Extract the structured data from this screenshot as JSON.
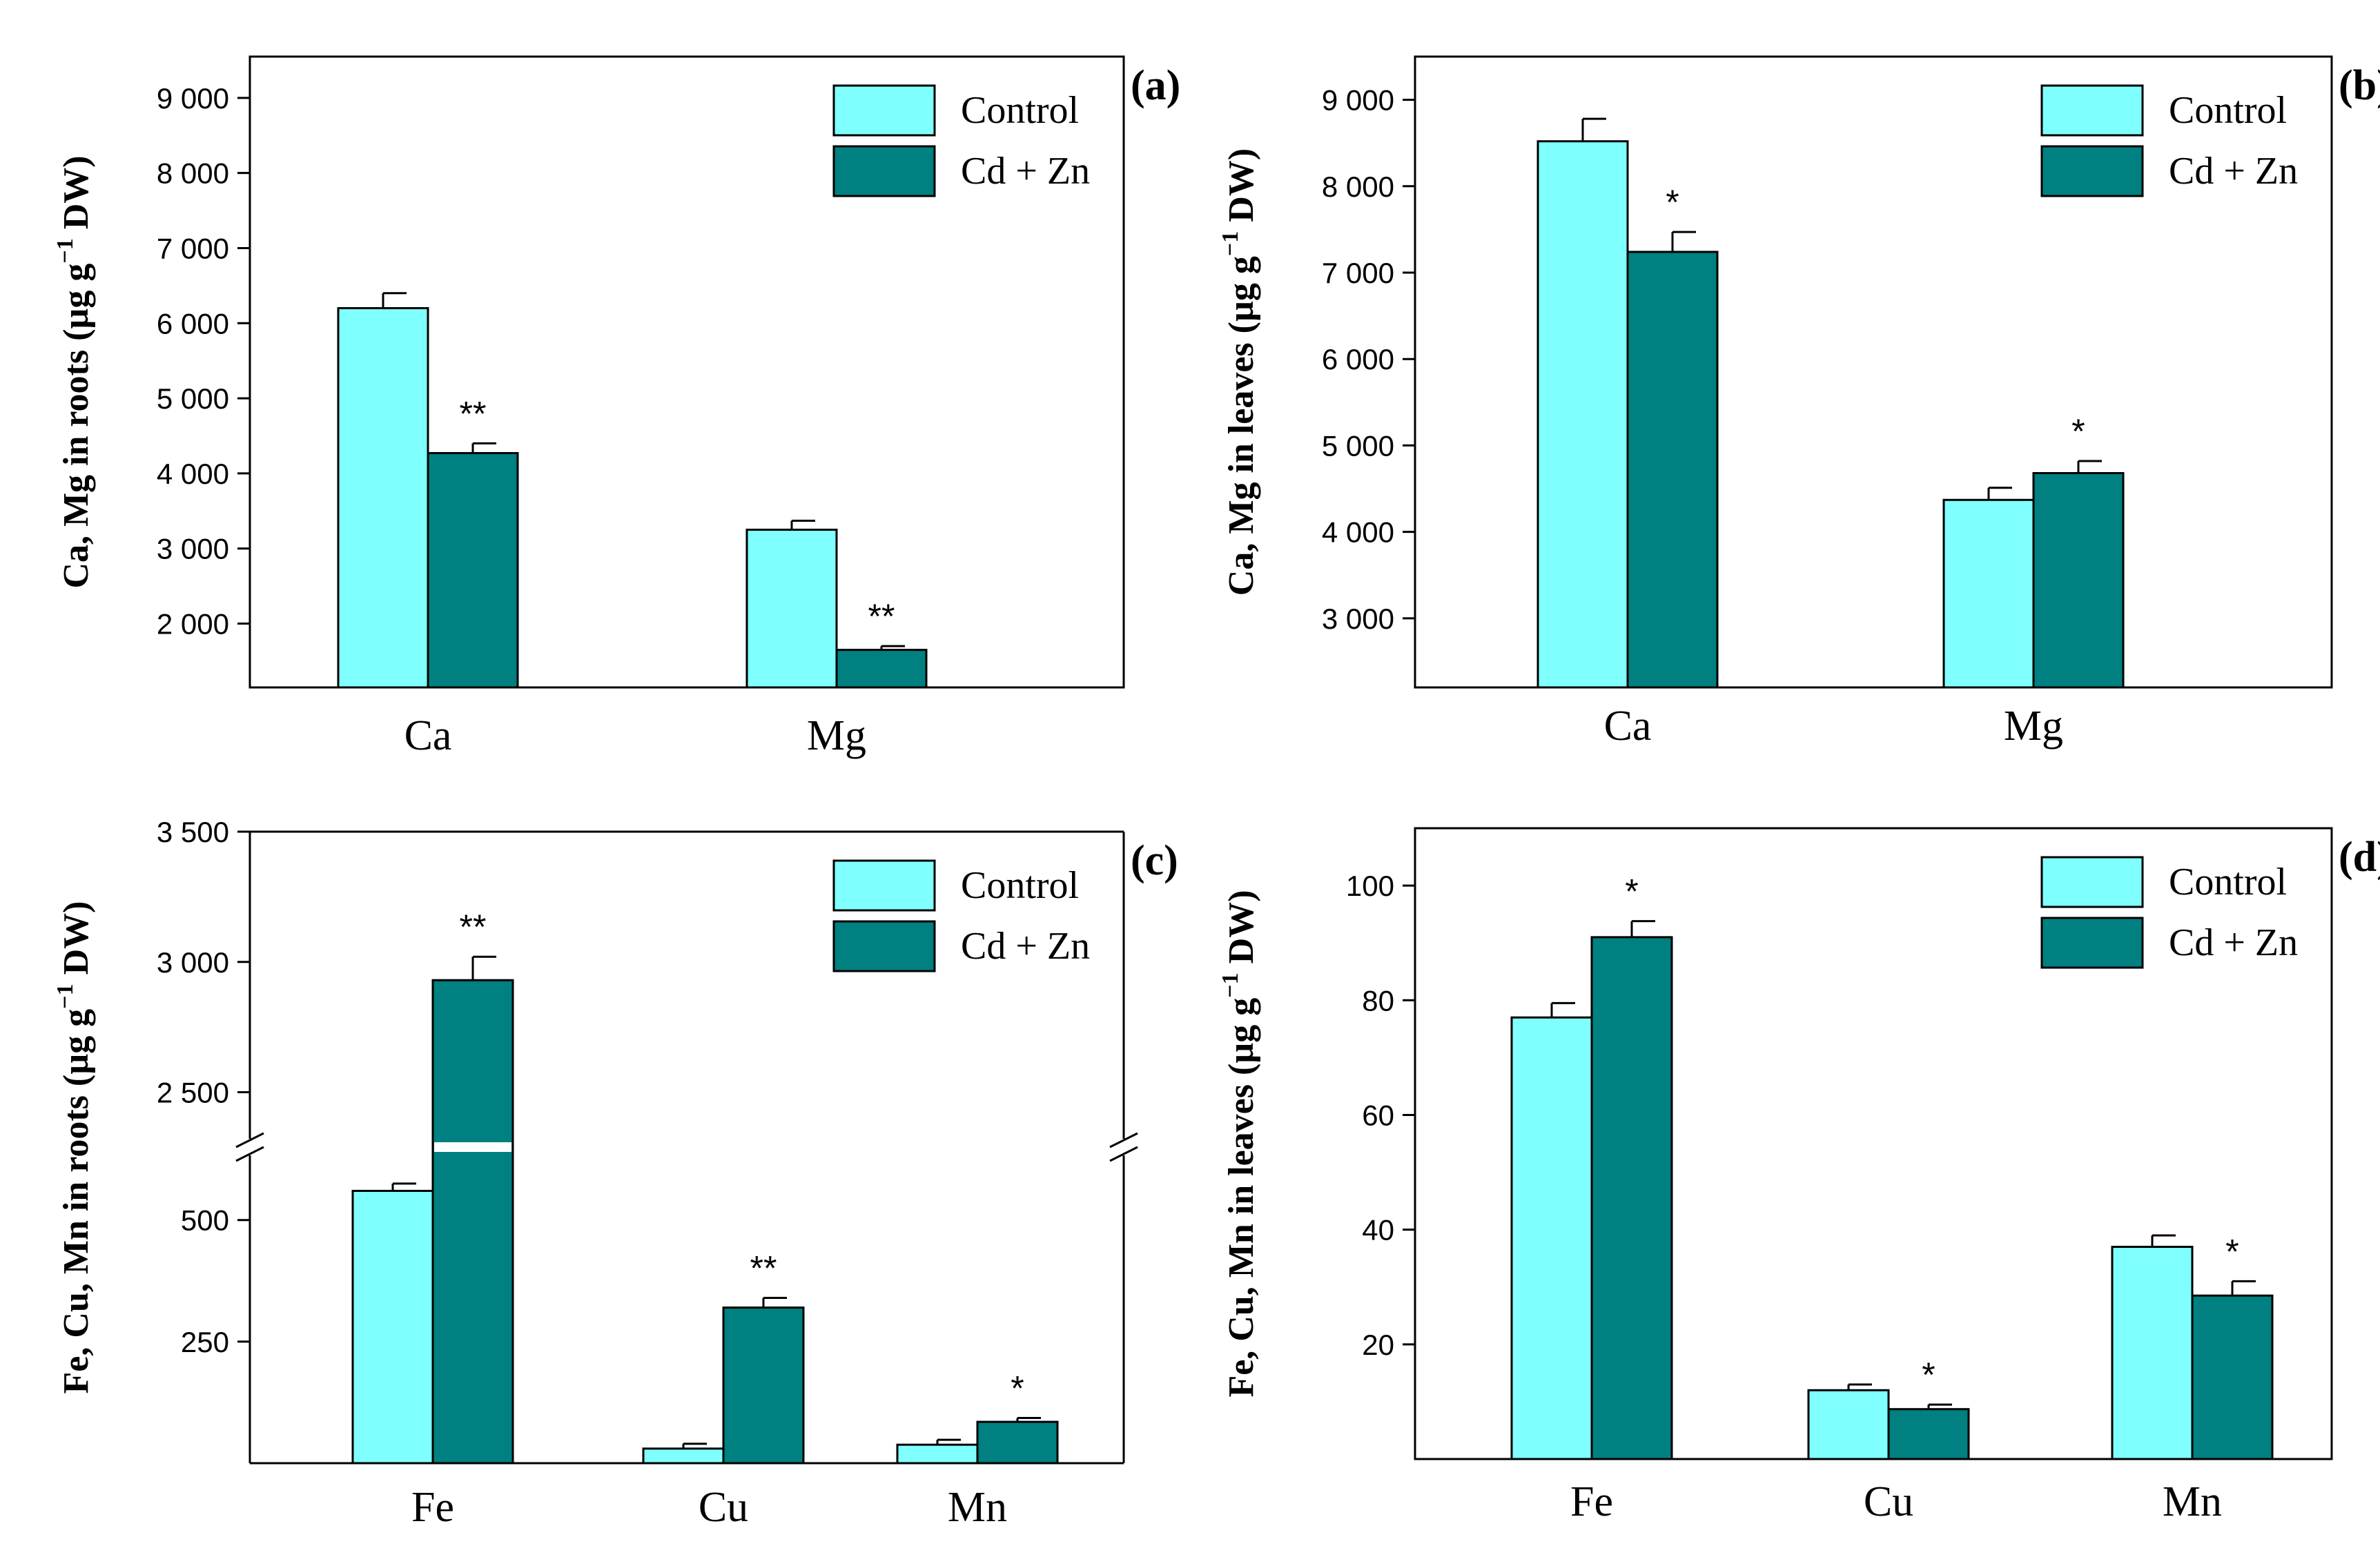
{
  "legend": {
    "control_label": "Control",
    "treatment_label": "Cd + Zn"
  },
  "colors": {
    "control": "#80ffff",
    "treatment": "#008080",
    "axis": "#000000"
  },
  "chart_data": [
    {
      "panel_label": "(a)",
      "type": "bar",
      "ylabel_pre": "Ca, Mg  in  roots (µg g",
      "ylabel_sup": "−1",
      "ylabel_post": " DW)",
      "categories": [
        "Ca",
        "Mg"
      ],
      "series": [
        {
          "name": "Control",
          "values": [
            6200,
            3250
          ],
          "errors": [
            200,
            120
          ]
        },
        {
          "name": "Cd + Zn",
          "values": [
            4270,
            1650
          ],
          "errors": [
            130,
            50
          ]
        }
      ],
      "annotations": [
        [
          "",
          "**"
        ],
        [
          "",
          "**"
        ]
      ],
      "ylim": [
        1150,
        9550
      ],
      "ticks": [
        2000,
        3000,
        4000,
        5000,
        6000,
        7000,
        8000,
        9000
      ],
      "tick_labels": [
        "2 000",
        "3 000",
        "4 000",
        "5 000",
        "6 000",
        "7 000",
        "8 000",
        "9 000"
      ],
      "legend_position": "top-right"
    },
    {
      "panel_label": "(b)",
      "type": "bar",
      "ylabel_pre": "Ca, Mg  in  leaves (µg g",
      "ylabel_sup": "−1",
      "ylabel_post": " DW)",
      "categories": [
        "Ca",
        "Mg"
      ],
      "series": [
        {
          "name": "Control",
          "values": [
            8520,
            4370
          ],
          "errors": [
            260,
            140
          ]
        },
        {
          "name": "Cd + Zn",
          "values": [
            7240,
            4680
          ],
          "errors": [
            230,
            140
          ]
        }
      ],
      "annotations": [
        [
          "",
          "*"
        ],
        [
          "",
          "*"
        ]
      ],
      "ylim": [
        2200,
        9500
      ],
      "ticks": [
        3000,
        4000,
        5000,
        6000,
        7000,
        8000,
        9000
      ],
      "tick_labels": [
        "3 000",
        "4 000",
        "5 000",
        "6 000",
        "7 000",
        "8 000",
        "9 000"
      ],
      "legend_position": "top-right"
    },
    {
      "panel_label": "(c)",
      "type": "bar",
      "ylabel_pre": "Fe, Cu, Mn  in  roots (µg g",
      "ylabel_sup": "−1",
      "ylabel_post": " DW)",
      "categories": [
        "Fe",
        "Cu",
        "Mn"
      ],
      "series": [
        {
          "name": "Control",
          "values": [
            560,
            30,
            38
          ],
          "errors": [
            15,
            10,
            10
          ]
        },
        {
          "name": "Cd + Zn",
          "values": [
            2930,
            320,
            85
          ],
          "errors": [
            90,
            20,
            8
          ]
        }
      ],
      "annotations": [
        [
          "",
          "**"
        ],
        [
          "",
          "**"
        ],
        [
          "",
          "*"
        ]
      ],
      "axis_break": {
        "lower_range": [
          0,
          660
        ],
        "upper_range": [
          2300,
          3500
        ]
      },
      "ticks": [
        250,
        500,
        2500,
        3000,
        3500
      ],
      "tick_labels": [
        "250",
        "500",
        "2 500",
        "3 000",
        "3 500"
      ],
      "legend_position": "top-right"
    },
    {
      "panel_label": "(d)",
      "type": "bar",
      "ylabel_pre": "Fe, Cu, Mn  in  leaves (µg g",
      "ylabel_sup": "−1",
      "ylabel_post": " DW)",
      "categories": [
        "Fe",
        "Cu",
        "Mn"
      ],
      "series": [
        {
          "name": "Control",
          "values": [
            77,
            12,
            37
          ],
          "errors": [
            2.5,
            1,
            2
          ]
        },
        {
          "name": "Cd + Zn",
          "values": [
            91,
            8.7,
            28.5
          ],
          "errors": [
            2.8,
            0.8,
            2.5
          ]
        }
      ],
      "annotations": [
        [
          "",
          "*"
        ],
        [
          "",
          "*"
        ],
        [
          "",
          "*"
        ]
      ],
      "ylim": [
        0,
        110
      ],
      "ticks": [
        20,
        40,
        60,
        80,
        100
      ],
      "tick_labels": [
        "20",
        "40",
        "60",
        "80",
        "100"
      ],
      "legend_position": "top-right"
    }
  ]
}
